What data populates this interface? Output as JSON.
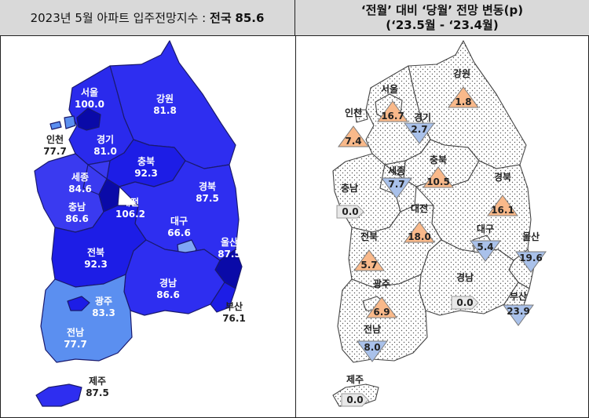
{
  "left_panel": {
    "title_prefix": "2023년 5월 아파트 입주전망지수 :",
    "title_national_label": "전국",
    "title_national_value": "85.6",
    "regions": [
      {
        "id": "seoul",
        "name": "서울",
        "value": "100.0"
      },
      {
        "id": "incheon",
        "name": "인천",
        "value": "77.7"
      },
      {
        "id": "gyeonggi",
        "name": "경기",
        "value": "81.0"
      },
      {
        "id": "gangwon",
        "name": "강원",
        "value": "81.8"
      },
      {
        "id": "chungbuk",
        "name": "충북",
        "value": "92.3"
      },
      {
        "id": "sejong",
        "name": "세종",
        "value": "84.6"
      },
      {
        "id": "chungnam",
        "name": "충남",
        "value": "86.6"
      },
      {
        "id": "daejeon",
        "name": "대전",
        "value": "106.2"
      },
      {
        "id": "gyeongbuk",
        "name": "경북",
        "value": "87.5"
      },
      {
        "id": "daegu",
        "name": "대구",
        "value": "66.6"
      },
      {
        "id": "ulsan",
        "name": "울산",
        "value": "87.5"
      },
      {
        "id": "jeonbuk",
        "name": "전북",
        "value": "92.3"
      },
      {
        "id": "gwangju",
        "name": "광주",
        "value": "83.3"
      },
      {
        "id": "jeonnam",
        "name": "전남",
        "value": "77.7"
      },
      {
        "id": "gyeongnam",
        "name": "경남",
        "value": "86.6"
      },
      {
        "id": "busan",
        "name": "부산",
        "value": "76.1"
      },
      {
        "id": "jeju",
        "name": "제주",
        "value": "87.5"
      }
    ]
  },
  "right_panel": {
    "title_line1": "‘전월’ 대비 ‘당월’ 전망 변동(p)",
    "title_line2": "(‘23.5월  -  ‘23.4월)",
    "regions": [
      {
        "id": "seoul",
        "name": "서울",
        "value": "16.7",
        "direction": "up"
      },
      {
        "id": "incheon",
        "name": "인천",
        "value": "7.4",
        "direction": "up"
      },
      {
        "id": "gyeonggi",
        "name": "경기",
        "value": "2.7",
        "direction": "down"
      },
      {
        "id": "gangwon",
        "name": "강원",
        "value": "1.8",
        "direction": "up"
      },
      {
        "id": "chungbuk",
        "name": "충북",
        "value": "10.5",
        "direction": "up"
      },
      {
        "id": "sejong",
        "name": "세종",
        "value": "7.7",
        "direction": "down"
      },
      {
        "id": "chungnam",
        "name": "충남",
        "value": "0.0",
        "direction": "flat"
      },
      {
        "id": "daejeon",
        "name": "대전",
        "value": "18.0",
        "direction": "up"
      },
      {
        "id": "gyeongbuk",
        "name": "경북",
        "value": "16.1",
        "direction": "up"
      },
      {
        "id": "jeonbuk",
        "name": "전북",
        "value": "5.7",
        "direction": "up"
      },
      {
        "id": "daegu",
        "name": "대구",
        "value": "5.4",
        "direction": "down"
      },
      {
        "id": "ulsan",
        "name": "울산",
        "value": "19.6",
        "direction": "down"
      },
      {
        "id": "gwangju",
        "name": "광주",
        "value": "6.9",
        "direction": "up"
      },
      {
        "id": "gyeongnam",
        "name": "경남",
        "value": "0.0",
        "direction": "flat"
      },
      {
        "id": "busan",
        "name": "부산",
        "value": "23.9",
        "direction": "down"
      },
      {
        "id": "jeonnam",
        "name": "전남",
        "value": "8.0",
        "direction": "down"
      },
      {
        "id": "jeju",
        "name": "제주",
        "value": "0.0",
        "direction": "flat"
      }
    ]
  },
  "colors": {
    "blue_dark": "#0a0aa8",
    "blue_mid": "#1d1de6",
    "blue_main": "#2e2ef0",
    "blue_light": "#4a4aee",
    "blue_sky": "#5b8ff0",
    "blue_pale": "#7fa7f5",
    "up_triangle": "#f9b98a",
    "down_triangle": "#a9c1ea",
    "flat_arrow": "#e8e8e8"
  }
}
